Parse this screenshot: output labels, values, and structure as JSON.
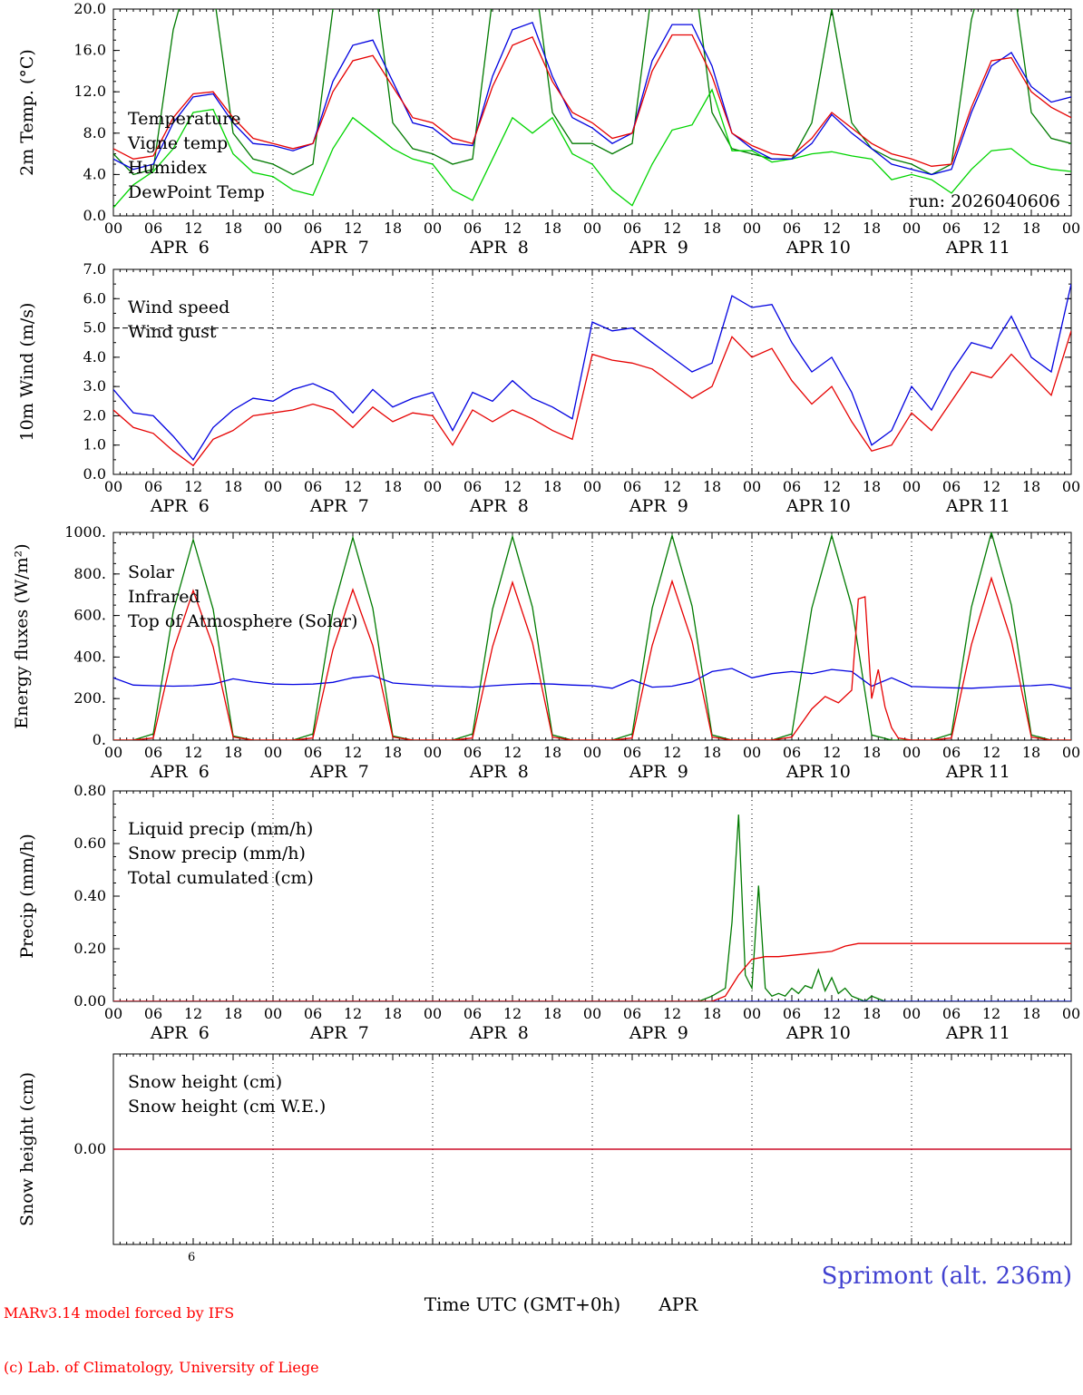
{
  "x_axis": {
    "total_hours": 144,
    "hour_labels": [
      "00",
      "06",
      "12",
      "18"
    ],
    "day_labels": [
      "APR  6",
      "APR  7",
      "APR  8",
      "APR  9",
      "APR 10",
      "APR 11"
    ],
    "day_label_hours": [
      10,
      34,
      58,
      82,
      106,
      130
    ],
    "day_line_hours": [
      24,
      48,
      72,
      96,
      120
    ]
  },
  "colors": {
    "red": "#e60000",
    "blue": "#0000e0",
    "dark_green": "#007a00",
    "light_green": "#00d400",
    "black": "#000000"
  },
  "chart_data": [
    {
      "type": "line",
      "key": "temperature",
      "ylabel": "2m Temp. (°C)",
      "ylim": [
        0,
        20
      ],
      "yminor": 1,
      "yticks": {
        "values": [
          0,
          4,
          8,
          12,
          16,
          20
        ],
        "labels": [
          "0.0",
          "4.0",
          "8.0",
          "12.0",
          "16.0",
          "20.0"
        ]
      },
      "x_hours_step": 3,
      "annotation": {
        "text": "run: 2026040606"
      },
      "legend": [
        {
          "label": "Temperature",
          "color": "#e60000"
        },
        {
          "label": "Vigne temp",
          "color": "#007a00"
        },
        {
          "label": "Humidex",
          "color": "#0000e0"
        },
        {
          "label": "DewPoint Temp",
          "color": "#00d400"
        }
      ],
      "series": [
        {
          "name": "vigne-temp",
          "color": "#007a00",
          "values": [
            6.0,
            4.0,
            4.5,
            18.0,
            25.0,
            22.0,
            8.0,
            5.5,
            5.0,
            4.0,
            5.0,
            20.0,
            26.0,
            24.0,
            9.0,
            6.5,
            6.0,
            5.0,
            5.5,
            21.0,
            27.0,
            25.0,
            10.0,
            7.0,
            7.0,
            6.0,
            7.0,
            22.0,
            27.0,
            25.0,
            10.0,
            6.5,
            6.0,
            5.5,
            5.5,
            9.0,
            20.0,
            9.0,
            6.5,
            5.5,
            5.0,
            4.0,
            5.0,
            19.0,
            26.0,
            24.0,
            10.0,
            7.5,
            7.0
          ]
        },
        {
          "name": "dewpoint-temp",
          "color": "#00d400",
          "values": [
            0.8,
            3.0,
            4.3,
            6.5,
            10.0,
            10.3,
            6.0,
            4.2,
            3.8,
            2.5,
            2.0,
            6.5,
            9.5,
            8.0,
            6.5,
            5.5,
            5.0,
            2.5,
            1.5,
            5.5,
            9.5,
            8.0,
            9.5,
            6.0,
            5.0,
            2.5,
            1.0,
            5.0,
            8.3,
            8.8,
            12.2,
            6.3,
            6.3,
            5.2,
            5.5,
            6.0,
            6.2,
            5.8,
            5.5,
            3.5,
            4.0,
            3.5,
            2.2,
            4.5,
            6.3,
            6.5,
            5.0,
            4.5,
            4.3
          ]
        },
        {
          "name": "humidex",
          "color": "#0000e0",
          "values": [
            5.5,
            4.5,
            5.0,
            9.0,
            11.5,
            11.8,
            9.0,
            7.0,
            6.8,
            6.3,
            7.0,
            13.0,
            16.5,
            17.0,
            13.0,
            9.0,
            8.5,
            7.0,
            6.8,
            13.5,
            18.0,
            18.7,
            13.5,
            9.5,
            8.5,
            7.0,
            8.0,
            15.0,
            18.5,
            18.5,
            14.5,
            8.0,
            6.5,
            5.5,
            5.5,
            7.0,
            9.8,
            8.0,
            6.5,
            5.0,
            4.5,
            4.0,
            4.5,
            10.0,
            14.5,
            15.8,
            12.5,
            11.0,
            11.5
          ]
        },
        {
          "name": "temperature",
          "color": "#e60000",
          "values": [
            6.5,
            5.5,
            5.8,
            9.5,
            11.8,
            12.0,
            9.5,
            7.5,
            7.0,
            6.5,
            7.0,
            12.0,
            15.0,
            15.5,
            12.5,
            9.5,
            9.0,
            7.5,
            7.0,
            12.5,
            16.5,
            17.3,
            13.0,
            10.0,
            9.0,
            7.5,
            8.0,
            14.0,
            17.5,
            17.5,
            13.5,
            8.0,
            6.8,
            6.0,
            5.8,
            7.5,
            10.0,
            8.5,
            7.0,
            6.0,
            5.5,
            4.8,
            5.0,
            10.5,
            15.0,
            15.3,
            12.0,
            10.5,
            9.5
          ]
        }
      ]
    },
    {
      "type": "line",
      "key": "wind",
      "ylabel": "10m Wind (m/s)",
      "ylim": [
        0,
        7
      ],
      "yminor": 0.5,
      "yticks": {
        "values": [
          0,
          1,
          2,
          3,
          4,
          5,
          6,
          7
        ],
        "labels": [
          "0.0",
          "1.0",
          "2.0",
          "3.0",
          "4.0",
          "5.0",
          "6.0",
          "7.0"
        ]
      },
      "x_hours_step": 3,
      "refline": 5.0,
      "legend": [
        {
          "label": "Wind speed",
          "color": "#e60000"
        },
        {
          "label": "Wind gust",
          "color": "#0000e0"
        }
      ],
      "series": [
        {
          "name": "wind-gust",
          "color": "#0000e0",
          "values": [
            2.9,
            2.1,
            2.0,
            1.3,
            0.5,
            1.6,
            2.2,
            2.6,
            2.5,
            2.9,
            3.1,
            2.8,
            2.1,
            2.9,
            2.3,
            2.6,
            2.8,
            1.5,
            2.8,
            2.5,
            3.2,
            2.6,
            2.3,
            1.9,
            5.2,
            4.9,
            5.0,
            4.5,
            4.0,
            3.5,
            3.8,
            6.1,
            5.7,
            5.8,
            4.5,
            3.5,
            4.0,
            2.8,
            1.0,
            1.5,
            3.0,
            2.2,
            3.5,
            4.5,
            4.3,
            5.4,
            4.0,
            3.5,
            6.5
          ]
        },
        {
          "name": "wind-speed",
          "color": "#e60000",
          "values": [
            2.2,
            1.6,
            1.4,
            0.8,
            0.3,
            1.2,
            1.5,
            2.0,
            2.1,
            2.2,
            2.4,
            2.2,
            1.6,
            2.3,
            1.8,
            2.1,
            2.0,
            1.0,
            2.2,
            1.8,
            2.2,
            1.9,
            1.5,
            1.2,
            4.1,
            3.9,
            3.8,
            3.6,
            3.1,
            2.6,
            3.0,
            4.7,
            4.0,
            4.3,
            3.2,
            2.4,
            3.0,
            1.8,
            0.8,
            1.0,
            2.1,
            1.5,
            2.5,
            3.5,
            3.3,
            4.1,
            3.4,
            2.7,
            4.9
          ]
        }
      ]
    },
    {
      "type": "line",
      "key": "energy-fluxes",
      "ylabel": "Energy fluxes (W/m²)",
      "ylim": [
        0,
        1000
      ],
      "yminor": 50,
      "yticks": {
        "values": [
          0,
          200,
          400,
          600,
          800,
          1000
        ],
        "labels": [
          "0.",
          "200.",
          "400.",
          "600.",
          "800.",
          "1000."
        ]
      },
      "x_hours_step": 3,
      "legend": [
        {
          "label": "Solar",
          "color": "#e60000"
        },
        {
          "label": "Infrared",
          "color": "#0000e0"
        },
        {
          "label": "Top of Atmosphere (Solar)",
          "color": "#007a00"
        }
      ],
      "series": [
        {
          "name": "top-of-atmosphere",
          "color": "#007a00",
          "values": [
            0,
            0,
            30,
            620,
            965,
            630,
            20,
            0,
            0,
            0,
            30,
            625,
            975,
            635,
            20,
            0,
            0,
            0,
            30,
            630,
            980,
            640,
            25,
            0,
            0,
            0,
            30,
            635,
            985,
            645,
            25,
            0,
            0,
            0,
            30,
            635,
            985,
            645,
            25,
            0,
            0,
            0,
            30,
            640,
            1000,
            650,
            25,
            0,
            0
          ]
        },
        {
          "name": "infrared",
          "color": "#0000e0",
          "values": [
            300,
            265,
            262,
            260,
            262,
            270,
            295,
            280,
            270,
            268,
            270,
            278,
            300,
            310,
            275,
            268,
            262,
            258,
            255,
            262,
            268,
            272,
            270,
            265,
            262,
            250,
            290,
            255,
            260,
            280,
            330,
            345,
            300,
            320,
            330,
            320,
            340,
            330,
            260,
            300,
            258,
            255,
            252,
            250,
            255,
            260,
            262,
            268,
            250
          ]
        },
        {
          "name": "solar",
          "color": "#e60000",
          "x": [
            0,
            3,
            6,
            9,
            12,
            15,
            18,
            21,
            24,
            27,
            30,
            33,
            36,
            39,
            42,
            45,
            48,
            51,
            54,
            57,
            60,
            63,
            66,
            69,
            72,
            75,
            78,
            81,
            84,
            87,
            90,
            93,
            96,
            99,
            102,
            105,
            107,
            109,
            111,
            112,
            113,
            114,
            115,
            116,
            117,
            118,
            120,
            123,
            126,
            129,
            132,
            135,
            138,
            141,
            144
          ],
          "values": [
            0,
            0,
            10,
            430,
            720,
            450,
            15,
            0,
            0,
            0,
            10,
            435,
            725,
            455,
            15,
            0,
            0,
            0,
            10,
            450,
            760,
            470,
            15,
            0,
            0,
            0,
            10,
            455,
            765,
            475,
            15,
            0,
            0,
            0,
            15,
            150,
            210,
            180,
            240,
            680,
            690,
            200,
            340,
            160,
            60,
            10,
            0,
            0,
            10,
            460,
            780,
            480,
            15,
            0,
            0
          ]
        }
      ]
    },
    {
      "type": "line",
      "key": "precip",
      "ylabel": "Precip (mm/h)",
      "ylim": [
        0,
        0.8
      ],
      "yminor": 0.05,
      "yticks": {
        "values": [
          0,
          0.2,
          0.4,
          0.6,
          0.8
        ],
        "labels": [
          "0.00",
          "0.20",
          "0.40",
          "0.60",
          "0.80"
        ]
      },
      "x_hours_step": 3,
      "legend": [
        {
          "label": "Liquid precip (mm/h)",
          "color": "#007a00"
        },
        {
          "label": "Snow precip (mm/h)",
          "color": "#0000e0"
        },
        {
          "label": "Total cumulated (cm)",
          "color": "#e60000"
        }
      ],
      "series": [
        {
          "name": "liquid-precip",
          "color": "#007a00",
          "x": [
            0,
            88,
            90,
            92,
            93,
            94,
            95,
            96,
            97,
            98,
            99,
            100,
            101,
            102,
            103,
            104,
            105,
            106,
            107,
            108,
            109,
            110,
            111,
            112,
            113,
            114,
            115,
            116,
            118,
            144
          ],
          "values": [
            0,
            0,
            0.02,
            0.05,
            0.3,
            0.71,
            0.1,
            0.05,
            0.44,
            0.05,
            0.02,
            0.03,
            0.02,
            0.05,
            0.03,
            0.06,
            0.05,
            0.12,
            0.04,
            0.09,
            0.03,
            0.05,
            0.02,
            0.01,
            0.0,
            0.02,
            0.01,
            0.0,
            0,
            0
          ]
        },
        {
          "name": "snow-precip",
          "color": "#0000e0",
          "x": [
            0,
            144
          ],
          "values": [
            0,
            0
          ]
        },
        {
          "name": "total-cumulated",
          "color": "#e60000",
          "x": [
            0,
            90,
            92,
            94,
            96,
            98,
            100,
            104,
            108,
            110,
            112,
            114,
            120,
            144
          ],
          "values": [
            0,
            0,
            0.02,
            0.1,
            0.16,
            0.17,
            0.17,
            0.18,
            0.19,
            0.21,
            0.22,
            0.22,
            0.22,
            0.22
          ]
        }
      ]
    },
    {
      "type": "line",
      "key": "snow-height",
      "ylabel": "Snow height (cm)",
      "ylim": [
        -1,
        1
      ],
      "yminor": null,
      "yticks": {
        "values": [
          0
        ],
        "labels": [
          "0.00"
        ]
      },
      "x_hours_step": 3,
      "legend": [
        {
          "label": "Snow height (cm)",
          "color": "#e60000"
        },
        {
          "label": "Snow height (cm W.E.)",
          "color": "#0000e0"
        }
      ],
      "series": [
        {
          "name": "snow-height-we",
          "color": "#0000e0",
          "x": [
            0,
            144
          ],
          "values": [
            0,
            0
          ]
        },
        {
          "name": "snow-height",
          "color": "#e60000",
          "x": [
            0,
            144
          ],
          "values": [
            0,
            0
          ]
        }
      ]
    }
  ],
  "footer": {
    "left_line1": "MARv3.14 model forced by IFS",
    "left_line2": "(c) Lab. of Climatology, University of Liege",
    "superscript": "6",
    "center_time": "Time UTC (GMT+0h)",
    "center_month": "APR",
    "station": "Sprimont (alt. 236m)"
  }
}
